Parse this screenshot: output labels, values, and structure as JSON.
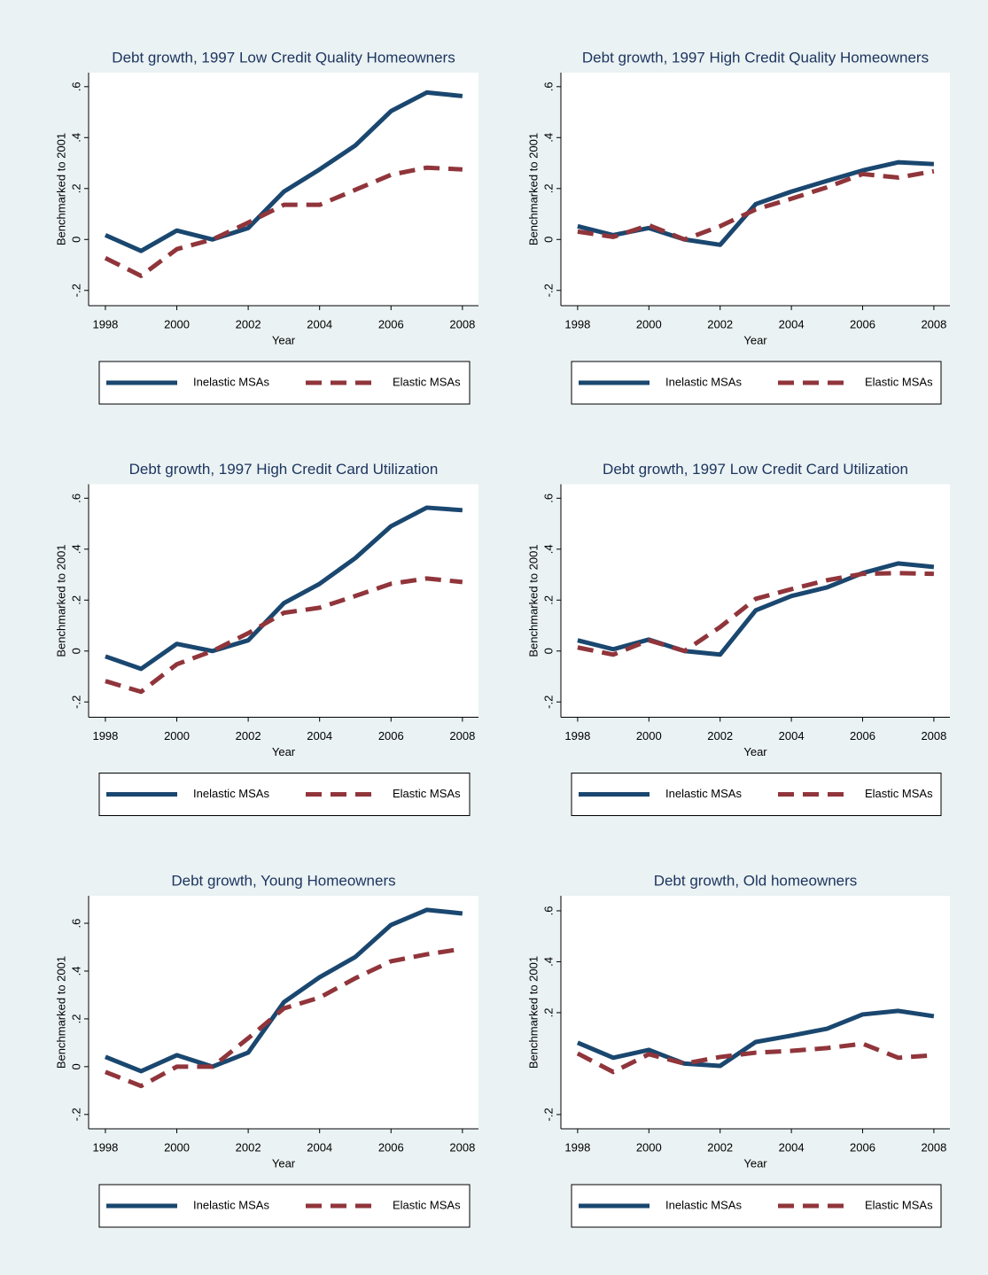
{
  "chart_data": [
    {
      "type": "line",
      "title": "Debt growth, 1997 Low Credit Quality Homeowners",
      "xlabel": "Year",
      "ylabel": "Benchmarked to 2001",
      "x": [
        1998,
        1999,
        2000,
        2001,
        2002,
        2003,
        2004,
        2005,
        2006,
        2007,
        2008
      ],
      "xlim": [
        1997.53,
        2008.45
      ],
      "xticks": [
        1998,
        2000,
        2002,
        2004,
        2006,
        2008
      ],
      "ylim": [
        -0.26,
        0.655
      ],
      "yticks": [
        {
          "value": -0.2,
          "label": "-.2"
        },
        0,
        {
          "value": 0.2,
          "label": ".2"
        },
        {
          "value": 0.4,
          "label": ".4"
        },
        {
          "value": 0.6,
          "label": ".6"
        }
      ],
      "series": [
        {
          "name": "Inelastic MSAs",
          "color": "#1a476f",
          "dashed": false,
          "values": [
            0.017,
            -0.045,
            0.035,
            0,
            0.045,
            0.188,
            0.275,
            0.369,
            0.504,
            0.577,
            0.563
          ]
        },
        {
          "name": "Elastic MSAs",
          "color": "#90353b",
          "dashed": true,
          "values": [
            -0.073,
            -0.143,
            -0.038,
            0,
            0.066,
            0.136,
            0.136,
            0.195,
            0.254,
            0.282,
            0.275
          ]
        }
      ]
    },
    {
      "type": "line",
      "title": "Debt growth, 1997 High Credit Quality Homeowners",
      "xlabel": "Year",
      "ylabel": "Benchmarked to 2001",
      "x": [
        1998,
        1999,
        2000,
        2001,
        2002,
        2003,
        2004,
        2005,
        2006,
        2007,
        2008
      ],
      "xlim": [
        1997.53,
        2008.45
      ],
      "xticks": [
        1998,
        2000,
        2002,
        2004,
        2006,
        2008
      ],
      "ylim": [
        -0.26,
        0.655
      ],
      "yticks": [
        {
          "value": -0.2,
          "label": "-.2"
        },
        0,
        {
          "value": 0.2,
          "label": ".2"
        },
        {
          "value": 0.4,
          "label": ".4"
        },
        {
          "value": 0.6,
          "label": ".6"
        }
      ],
      "series": [
        {
          "name": "Inelastic MSAs",
          "color": "#1a476f",
          "dashed": false,
          "values": [
            0.052,
            0.017,
            0.045,
            0,
            -0.021,
            0.139,
            0.188,
            0.23,
            0.271,
            0.303,
            0.296
          ]
        },
        {
          "name": "Elastic MSAs",
          "color": "#90353b",
          "dashed": true,
          "values": [
            0.031,
            0.01,
            0.056,
            0,
            0.052,
            0.118,
            0.16,
            0.205,
            0.257,
            0.243,
            0.268
          ]
        }
      ]
    },
    {
      "type": "line",
      "title": "Debt growth, 1997 High Credit Card Utilization",
      "xlabel": "Year",
      "ylabel": "Benchmarked to 2001",
      "x": [
        1998,
        1999,
        2000,
        2001,
        2002,
        2003,
        2004,
        2005,
        2006,
        2007,
        2008
      ],
      "xlim": [
        1997.53,
        2008.45
      ],
      "xticks": [
        1998,
        2000,
        2002,
        2004,
        2006,
        2008
      ],
      "ylim": [
        -0.26,
        0.655
      ],
      "yticks": [
        {
          "value": -0.2,
          "label": "-.2"
        },
        0,
        {
          "value": 0.2,
          "label": ".2"
        },
        {
          "value": 0.4,
          "label": ".4"
        },
        {
          "value": 0.6,
          "label": ".6"
        }
      ],
      "series": [
        {
          "name": "Inelastic MSAs",
          "color": "#1a476f",
          "dashed": false,
          "values": [
            -0.021,
            -0.07,
            0.028,
            0,
            0.042,
            0.188,
            0.264,
            0.365,
            0.49,
            0.563,
            0.553
          ]
        },
        {
          "name": "Elastic MSAs",
          "color": "#90353b",
          "dashed": true,
          "values": [
            -0.118,
            -0.16,
            -0.052,
            0,
            0.07,
            0.15,
            0.17,
            0.216,
            0.264,
            0.285,
            0.271
          ]
        }
      ]
    },
    {
      "type": "line",
      "title": "Debt growth, 1997 Low Credit Card Utilization",
      "xlabel": "Year",
      "ylabel": "Benchmarked to 2001",
      "x": [
        1998,
        1999,
        2000,
        2001,
        2002,
        2003,
        2004,
        2005,
        2006,
        2007,
        2008
      ],
      "xlim": [
        1997.53,
        2008.45
      ],
      "xticks": [
        1998,
        2000,
        2002,
        2004,
        2006,
        2008
      ],
      "ylim": [
        -0.26,
        0.655
      ],
      "yticks": [
        {
          "value": -0.2,
          "label": "-.2"
        },
        0,
        {
          "value": 0.2,
          "label": ".2"
        },
        {
          "value": 0.4,
          "label": ".4"
        },
        {
          "value": 0.6,
          "label": ".6"
        }
      ],
      "series": [
        {
          "name": "Inelastic MSAs",
          "color": "#1a476f",
          "dashed": false,
          "values": [
            0.042,
            0.007,
            0.045,
            0,
            -0.014,
            0.16,
            0.216,
            0.25,
            0.306,
            0.344,
            0.33
          ]
        },
        {
          "name": "Elastic MSAs",
          "color": "#90353b",
          "dashed": true,
          "values": [
            0.014,
            -0.014,
            0.042,
            0,
            0.094,
            0.205,
            0.243,
            0.278,
            0.303,
            0.306,
            0.303
          ]
        }
      ]
    },
    {
      "type": "line",
      "title": "Debt growth, Young Homeowners",
      "xlabel": "Year",
      "ylabel": "Benchmarked to 2001",
      "x": [
        1998,
        1999,
        2000,
        2001,
        2002,
        2003,
        2004,
        2005,
        2006,
        2007,
        2008
      ],
      "xlim": [
        1997.53,
        2008.45
      ],
      "xticks": [
        1998,
        2000,
        2002,
        2004,
        2006,
        2008
      ],
      "ylim": [
        -0.26,
        0.715
      ],
      "yticks": [
        {
          "value": -0.2,
          "label": "-.2"
        },
        0,
        {
          "value": 0.2,
          "label": ".2"
        },
        {
          "value": 0.4,
          "label": ".4"
        },
        {
          "value": 0.6,
          "label": ".6"
        }
      ],
      "series": [
        {
          "name": "Inelastic MSAs",
          "color": "#1a476f",
          "dashed": false,
          "values": [
            0.041,
            -0.019,
            0.048,
            0,
            0.059,
            0.27,
            0.374,
            0.459,
            0.593,
            0.656,
            0.641
          ]
        },
        {
          "name": "Elastic MSAs",
          "color": "#90353b",
          "dashed": true,
          "values": [
            -0.022,
            -0.081,
            0,
            0,
            0.119,
            0.244,
            0.289,
            0.37,
            0.441,
            0.47,
            0.493
          ]
        }
      ]
    },
    {
      "type": "line",
      "title": "Debt growth, Old homeowners",
      "xlabel": "Year",
      "ylabel": "Benchmarked to 2001",
      "x": [
        1998,
        1999,
        2000,
        2001,
        2002,
        2003,
        2004,
        2005,
        2006,
        2007,
        2008
      ],
      "xlim": [
        1997.53,
        2008.45
      ],
      "xticks": [
        1998,
        2000,
        2002,
        2004,
        2006,
        2008
      ],
      "ylim": [
        -0.256,
        0.659
      ],
      "yticks": [
        {
          "value": -0.2,
          "label": "-.2"
        },
        {
          "value": 0.2,
          "label": ".2"
        },
        {
          "value": 0.4,
          "label": ".4"
        },
        {
          "value": 0.6,
          "label": ".6"
        }
      ],
      "series": [
        {
          "name": "Inelastic MSAs",
          "color": "#1a476f",
          "dashed": false,
          "values": [
            0.082,
            0.023,
            0.054,
            0,
            -0.009,
            0.085,
            0.11,
            0.137,
            0.193,
            0.207,
            0.186
          ]
        },
        {
          "name": "Elastic MSAs",
          "color": "#90353b",
          "dashed": true,
          "values": [
            0.04,
            -0.033,
            0.037,
            0,
            0.026,
            0.043,
            0.05,
            0.061,
            0.078,
            0.023,
            0.033
          ]
        }
      ]
    }
  ]
}
